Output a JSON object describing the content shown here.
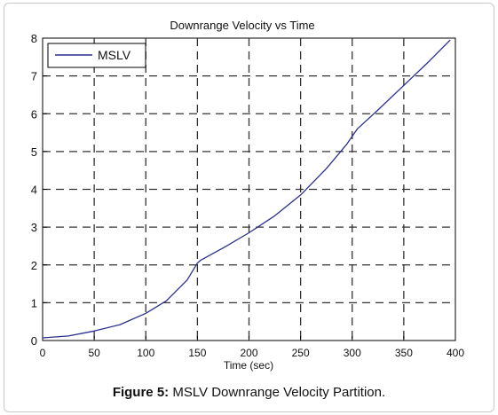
{
  "chart_data": {
    "type": "line",
    "title": "Downrange Velocity vs Time",
    "xlabel": "Time (sec)",
    "ylabel": "",
    "xlim": [
      0,
      400
    ],
    "ylim": [
      0,
      8
    ],
    "x_ticks": [
      0,
      50,
      100,
      150,
      200,
      250,
      300,
      350,
      400
    ],
    "y_ticks": [
      0,
      1,
      2,
      3,
      4,
      5,
      6,
      7,
      8
    ],
    "grid": true,
    "legend_position": "top-left",
    "series": [
      {
        "name": "MSLV",
        "color": "#2a2f8f",
        "x": [
          0,
          25,
          50,
          75,
          100,
          120,
          140,
          150,
          153,
          175,
          200,
          225,
          250,
          275,
          295,
          305,
          325,
          350,
          375,
          395
        ],
        "y": [
          0.07,
          0.12,
          0.25,
          0.42,
          0.72,
          1.05,
          1.6,
          2.05,
          2.12,
          2.45,
          2.85,
          3.3,
          3.85,
          4.55,
          5.2,
          5.6,
          6.1,
          6.75,
          7.4,
          7.95
        ]
      }
    ]
  },
  "caption": {
    "label": "Figure 5:",
    "text": " MSLV Downrange Velocity Partition."
  }
}
